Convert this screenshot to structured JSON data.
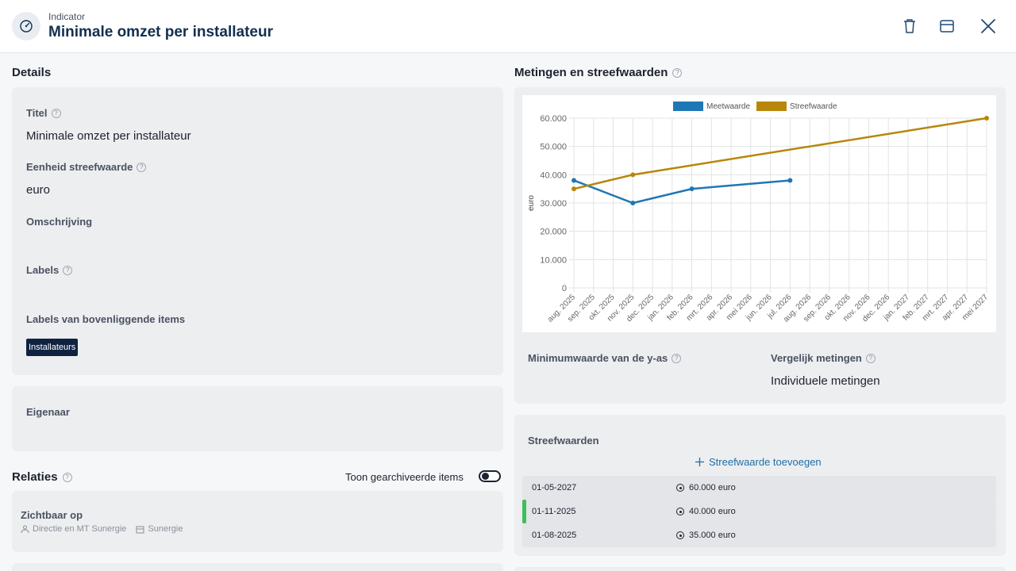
{
  "header": {
    "kicker": "Indicator",
    "title": "Minimale omzet per installateur",
    "icons": [
      "gauge-icon",
      "trash-icon",
      "archive-icon",
      "close-icon"
    ]
  },
  "details": {
    "section_title": "Details",
    "title_label": "Titel",
    "title_value": "Minimale omzet per installateur",
    "unit_label": "Eenheid streefwaarde",
    "unit_value": "euro",
    "description_label": "Omschrijving",
    "labels_label": "Labels",
    "parent_labels_label": "Labels van bovenliggende items",
    "parent_labels": [
      "Installateurs"
    ],
    "owner_label": "Eigenaar"
  },
  "relations": {
    "section_title": "Relaties",
    "toggle_label": "Toon gearchiveerde items",
    "visible_on_label": "Zichtbaar op",
    "visible_on_items": [
      "Directie en MT Sunergie",
      "Sunergie"
    ]
  },
  "measurements": {
    "section_title": "Metingen en streefwaarden",
    "y_min_label": "Minimumwaarde van de y-as",
    "compare_label": "Vergelijk metingen",
    "compare_value": "Individuele metingen"
  },
  "targets": {
    "title": "Streefwaarden",
    "add_label": "Streefwaarde toevoegen",
    "rows": [
      {
        "date": "01-05-2027",
        "value": "60.000 euro",
        "active": false
      },
      {
        "date": "01-11-2025",
        "value": "40.000 euro",
        "active": true
      },
      {
        "date": "01-08-2025",
        "value": "35.000 euro",
        "active": false
      }
    ]
  },
  "colors": {
    "meetwaarde": "#1f77b4",
    "streefwaarde": "#b8860b",
    "active_marker": "#3fbf5a"
  },
  "chart_data": {
    "type": "line",
    "ylabel": "euro",
    "ylim": [
      0,
      60000
    ],
    "yticks": [
      "0",
      "10.000",
      "20.000",
      "30.000",
      "40.000",
      "50.000",
      "60.000"
    ],
    "categories": [
      "aug. 2025",
      "sep. 2025",
      "okt. 2025",
      "nov. 2025",
      "dec. 2025",
      "jan. 2026",
      "feb. 2026",
      "mrt. 2026",
      "apr. 2026",
      "mei 2026",
      "jun. 2026",
      "jul. 2026",
      "aug. 2026",
      "sep. 2026",
      "okt. 2026",
      "nov. 2026",
      "dec. 2026",
      "jan. 2027",
      "feb. 2027",
      "mrt. 2027",
      "apr. 2027",
      "mei 2027"
    ],
    "series": [
      {
        "name": "Meetwaarde",
        "points": [
          {
            "x": "aug. 2025",
            "y": 38000
          },
          {
            "x": "nov. 2025",
            "y": 30000
          },
          {
            "x": "feb. 2026",
            "y": 35000
          },
          {
            "x": "jul. 2026",
            "y": 38000
          }
        ]
      },
      {
        "name": "Streefwaarde",
        "points": [
          {
            "x": "aug. 2025",
            "y": 35000
          },
          {
            "x": "nov. 2025",
            "y": 40000
          },
          {
            "x": "mei 2027",
            "y": 60000
          }
        ]
      }
    ],
    "grid": true,
    "legend": "top-center"
  }
}
